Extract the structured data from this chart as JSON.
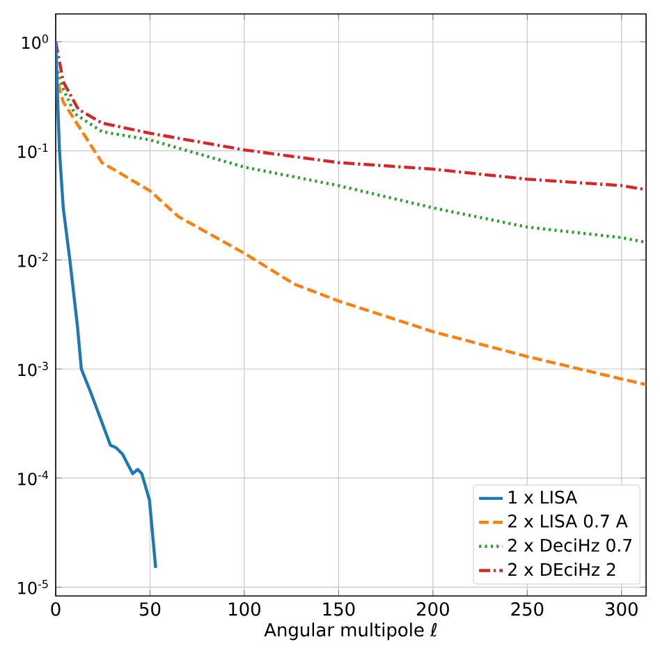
{
  "chart_data": {
    "type": "line",
    "xlabel": "Angular multipole ℓ",
    "log": "y",
    "grid": true,
    "legend": "bottom right",
    "marker": "none",
    "xlim": [
      0,
      313
    ],
    "ylim": [
      8.3e-06,
      1.8
    ],
    "xticks": [
      0,
      50,
      100,
      150,
      200,
      250,
      300
    ],
    "yticks": [
      {
        "value": 1,
        "label": "10$^{0}$"
      },
      {
        "value": 0.1,
        "label": "10$^{-1}$"
      },
      {
        "value": 0.01,
        "label": "10$^{-2}$"
      },
      {
        "value": 0.001,
        "label": "10$^{-3}$"
      },
      {
        "value": 0.0001,
        "label": "10$^{-4}$"
      },
      {
        "value": 1e-05,
        "label": "10$^{-5}$"
      }
    ],
    "series": [
      {
        "name": "1 x LISA",
        "color": "#1f77b4",
        "line_style": "solid",
        "x": [
          0,
          1,
          2,
          4,
          7.5,
          11.5,
          13.6,
          18.4,
          23.8,
          29,
          32,
          35.4,
          40.8,
          43.5,
          45.6,
          49.7,
          53
        ],
        "values": [
          1.0,
          0.3,
          0.1,
          0.03,
          0.01,
          0.0025,
          0.001,
          0.00062,
          0.00035,
          0.0002,
          0.00019,
          0.000166,
          0.00011,
          0.00012,
          0.00011,
          6.3e-05,
          1.5e-05
        ]
      },
      {
        "name": "2 x LISA 0.7 A",
        "color": "#ff7f0e",
        "line_style": "dashed",
        "x": [
          0,
          2,
          4,
          24.5,
          50,
          65,
          100,
          126.5,
          150,
          200,
          250,
          300,
          313
        ],
        "values": [
          0.55,
          0.37,
          0.28,
          0.078,
          0.043,
          0.025,
          0.0115,
          0.006,
          0.0042,
          0.0022,
          0.0013,
          0.00081,
          0.00072
        ]
      },
      {
        "name": "2 x DeciHz 0.7",
        "color": "#2ca02c",
        "line_style": "dotted",
        "x": [
          0,
          4,
          10,
          24.5,
          50,
          100,
          150,
          200,
          250,
          300,
          313
        ],
        "values": [
          0.6,
          0.37,
          0.22,
          0.15,
          0.126,
          0.071,
          0.048,
          0.03,
          0.02,
          0.016,
          0.0145
        ]
      },
      {
        "name": "2 x DEciHz 2",
        "color": "#d62728",
        "line_style": "dashdot",
        "x": [
          0,
          4,
          12,
          24.5,
          50,
          100,
          150,
          200,
          250,
          300,
          313
        ],
        "values": [
          1.0,
          0.43,
          0.24,
          0.18,
          0.145,
          0.102,
          0.078,
          0.068,
          0.055,
          0.048,
          0.044
        ]
      }
    ]
  }
}
